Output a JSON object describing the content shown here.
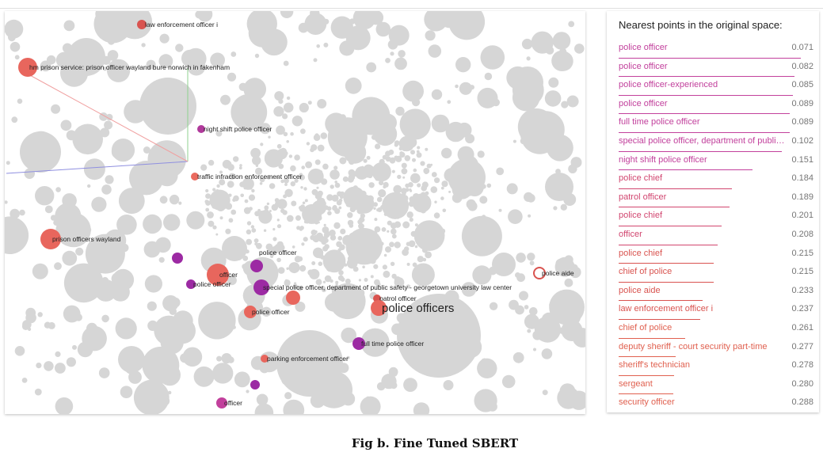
{
  "panel": {
    "title": "Nearest points in the original space:"
  },
  "neighbors": [
    {
      "label": "police officer",
      "distance": "0.071",
      "color": "#c2409c",
      "score": 1.0
    },
    {
      "label": "police officer",
      "distance": "0.082",
      "color": "#c2409c",
      "score": 0.95
    },
    {
      "label": "police officer-experienced",
      "distance": "0.085",
      "color": "#c2409c",
      "score": 0.94
    },
    {
      "label": "police officer",
      "distance": "0.089",
      "color": "#c2409c",
      "score": 0.92
    },
    {
      "label": "full time police officer",
      "distance": "0.089",
      "color": "#c2409c",
      "score": 0.92
    },
    {
      "label": "special police officer, department of public safety - georgetown university law center",
      "distance": "0.102",
      "color": "#c2409c",
      "score": 0.86
    },
    {
      "label": "night shift police officer",
      "distance": "0.151",
      "color": "#c2409c",
      "score": 0.64
    },
    {
      "label": "police chief",
      "distance": "0.184",
      "color": "#d1456f",
      "score": 0.49
    },
    {
      "label": "patrol officer",
      "distance": "0.189",
      "color": "#d1456f",
      "score": 0.47
    },
    {
      "label": "police chief",
      "distance": "0.201",
      "color": "#d1456f",
      "score": 0.41
    },
    {
      "label": "officer",
      "distance": "0.208",
      "color": "#d1456f",
      "score": 0.38
    },
    {
      "label": "police chief",
      "distance": "0.215",
      "color": "#d9534f",
      "score": 0.35
    },
    {
      "label": "chief of police",
      "distance": "0.215",
      "color": "#d9534f",
      "score": 0.35
    },
    {
      "label": "police aide",
      "distance": "0.233",
      "color": "#d9534f",
      "score": 0.27
    },
    {
      "label": "law enforcement officer i",
      "distance": "0.237",
      "color": "#d9534f",
      "score": 0.25
    },
    {
      "label": "chief of police",
      "distance": "0.261",
      "color": "#e0604f",
      "score": 0.14
    },
    {
      "label": "deputy sheriff - court security part-time",
      "distance": "0.277",
      "color": "#e0604f",
      "score": 0.07
    },
    {
      "label": "sheriff's technician",
      "distance": "0.278",
      "color": "#e0604f",
      "score": 0.06
    },
    {
      "label": "sergeant",
      "distance": "0.280",
      "color": "#e0604f",
      "score": 0.05
    },
    {
      "label": "security officer",
      "distance": "0.288",
      "color": "#e0604f",
      "score": 0.02
    }
  ],
  "points": [
    {
      "label": "law enforcement officer i",
      "color": "#d9534f"
    },
    {
      "label": "hm prison service: prison officer wayland bure norwich in fakenham",
      "color": "#e8665d"
    },
    {
      "label": "night shift police officer",
      "color": "#b0399b"
    },
    {
      "label": "traffic infraction enforcement officer",
      "color": "#ea6a5e"
    },
    {
      "label": "prison officers  wayland",
      "color": "#e8665d"
    },
    {
      "label": "police officer",
      "color": "#9c2aa3"
    },
    {
      "label": "officer",
      "color": "#e8665d"
    },
    {
      "label": "police officer",
      "color": "#9c2aa3"
    },
    {
      "label": "special police officer, department of public safety - georgetown university law center",
      "color": "#9c2aa3"
    },
    {
      "label": "police officer",
      "color": "#e8665d"
    },
    {
      "label": "patrol officer",
      "color": "#d9534f"
    },
    {
      "label": "police officers",
      "color": "#e8665d"
    },
    {
      "label": "police aide",
      "color": "#d9534f"
    },
    {
      "label": "full time police officer",
      "color": "#9c2aa3"
    },
    {
      "label": "parking enforcement officer",
      "color": "#e8665d"
    },
    {
      "label": "police officer",
      "color": "#9c2aa3"
    },
    {
      "label": "officer",
      "color": "#c2409c"
    }
  ],
  "caption": "Fig b. Fine Tuned SBERT"
}
